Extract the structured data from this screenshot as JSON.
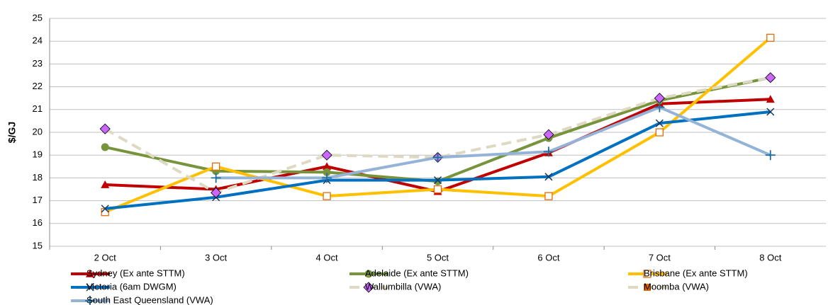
{
  "chart_data": {
    "type": "line",
    "y_label": "$/GJ",
    "categories": [
      "2 Oct",
      "3 Oct",
      "4 Oct",
      "5 Oct",
      "6 Oct",
      "7 Oct",
      "8 Oct"
    ],
    "ylim": [
      15,
      25
    ],
    "yticks": [
      15,
      16,
      17,
      18,
      19,
      20,
      21,
      22,
      23,
      24,
      25
    ],
    "grid": true,
    "series": [
      {
        "name": "Sydney (Ex ante STTM)",
        "color": "#c00000",
        "marker": "triangle",
        "marker_color": "#c00000",
        "values": [
          17.7,
          17.5,
          18.5,
          17.4,
          19.1,
          21.25,
          21.45
        ]
      },
      {
        "name": "Adelaide (Ex ante STTM)",
        "color": "#77933c",
        "marker": "circle",
        "marker_color": "#77933c",
        "values": [
          19.35,
          18.3,
          18.25,
          17.85,
          19.75,
          21.4,
          22.4
        ]
      },
      {
        "name": "Brisbane (Ex ante STTM)",
        "color": "#ffc000",
        "marker": "open-square",
        "marker_color": "#e46c0a",
        "values": [
          16.5,
          18.5,
          17.2,
          17.5,
          17.2,
          20.0,
          24.15
        ]
      },
      {
        "name": "Victoria (6am DWGM)",
        "color": "#0070c0",
        "marker": "x",
        "marker_color": "#17375e",
        "values": [
          16.65,
          17.15,
          17.9,
          17.9,
          18.05,
          20.4,
          20.9
        ]
      },
      {
        "name": "Wallumbilla (VWA)",
        "color": "#ddd9c3",
        "dashed": true,
        "marker": "diamond",
        "marker_color": "#cc66ff",
        "values": [
          20.15,
          17.35,
          19.0,
          18.9,
          19.9,
          21.5,
          22.4
        ]
      },
      {
        "name": "Moomba (VWA)",
        "color": "#ddd9c3",
        "dashed": true,
        "marker": "square",
        "marker_color": "#e46c0a",
        "values": [
          null,
          null,
          null,
          null,
          null,
          null,
          null
        ]
      },
      {
        "name": "South East Queensland (VWA)",
        "color": "#95b3d7",
        "marker": "plus",
        "marker_color": "#1f6e9c",
        "values": [
          null,
          18.0,
          18.0,
          18.9,
          19.15,
          21.1,
          19.0
        ]
      }
    ]
  }
}
